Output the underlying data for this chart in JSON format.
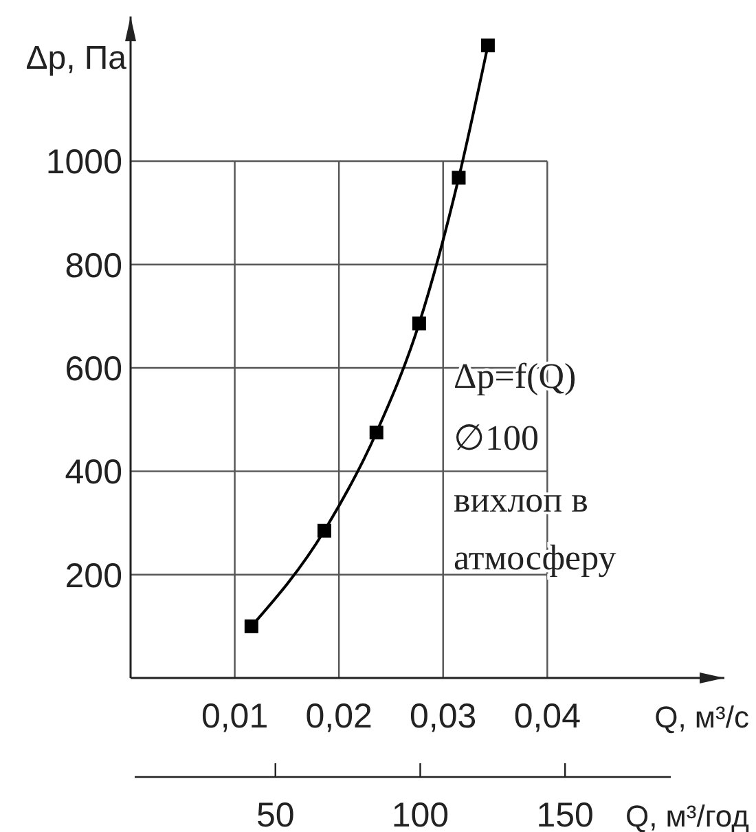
{
  "chart_data": {
    "type": "line",
    "ylabel": "Δp, Па",
    "xlabel": "Q, м³/с",
    "x2label": "Q, м³/год",
    "xlim": [
      0,
      0.057
    ],
    "ylim": [
      0,
      1280
    ],
    "xticks": [
      {
        "value": 0.01,
        "label": "0,01"
      },
      {
        "value": 0.02,
        "label": "0,02"
      },
      {
        "value": 0.03,
        "label": "0,03"
      },
      {
        "value": 0.04,
        "label": "0,04"
      }
    ],
    "yticks": [
      200,
      400,
      600,
      800,
      1000
    ],
    "x2lim": [
      0,
      205
    ],
    "x2ticks": [
      50,
      100,
      150
    ],
    "grid": true,
    "marker": "square",
    "line_style": "solid",
    "annotations": [
      "Δp=f(Q)",
      "∅100",
      "вихлоп в атмосферу"
    ],
    "series": [
      {
        "color": "#000000",
        "x": [
          0.0116,
          0.0186,
          0.0236,
          0.0277,
          0.0315,
          0.0343
        ],
        "values": [
          100,
          285,
          475,
          686,
          968,
          1224
        ]
      }
    ]
  }
}
